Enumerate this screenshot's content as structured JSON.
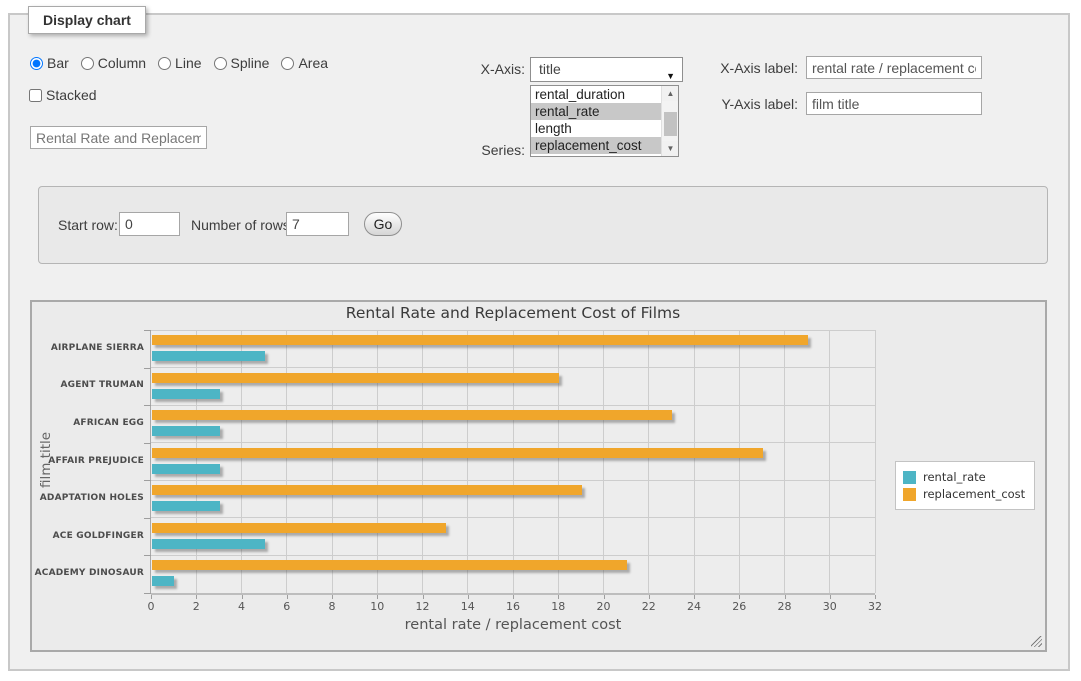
{
  "window": {
    "legend": "Display chart"
  },
  "icons": {
    "dropdown_arrow": "▼",
    "scroll_up": "▲",
    "scroll_down": "▼"
  },
  "controls": {
    "chart_types": [
      {
        "label": "Bar",
        "checked": true
      },
      {
        "label": "Column",
        "checked": false
      },
      {
        "label": "Line",
        "checked": false
      },
      {
        "label": "Spline",
        "checked": false
      },
      {
        "label": "Area",
        "checked": false
      }
    ],
    "stacked": {
      "label": "Stacked",
      "checked": false
    },
    "title_input": {
      "value": "Rental Rate and Replacemer"
    },
    "x_axis": {
      "label": "X-Axis:",
      "selected": "title"
    },
    "series": {
      "label": "Series:",
      "options": [
        {
          "label": "rental_duration",
          "selected": false
        },
        {
          "label": "rental_rate",
          "selected": true
        },
        {
          "label": "length",
          "selected": false
        },
        {
          "label": "replacement_cost",
          "selected": true
        }
      ]
    },
    "x_axis_label": {
      "label": "X-Axis label:",
      "value": "rental rate / replacement cost"
    },
    "y_axis_label": {
      "label": "Y-Axis label:",
      "value": "film title"
    }
  },
  "pagination": {
    "start_row_label": "Start row:",
    "start_row_value": "0",
    "num_rows_label": "Number of rows:",
    "num_rows_value": "7",
    "go_label": "Go"
  },
  "chart_data": {
    "type": "bar",
    "orientation": "horizontal",
    "title": "Rental Rate and Replacement Cost of Films",
    "categories": [
      "AIRPLANE SIERRA",
      "AGENT TRUMAN",
      "AFRICAN EGG",
      "AFFAIR PREJUDICE",
      "ADAPTATION HOLES",
      "ACE GOLDFINGER",
      "ACADEMY DINOSAUR"
    ],
    "series": [
      {
        "name": "rental_rate",
        "color": "#4db5c5",
        "values": [
          4.99,
          2.99,
          2.99,
          2.99,
          2.99,
          4.99,
          0.99
        ]
      },
      {
        "name": "replacement_cost",
        "color": "#f0a62b",
        "values": [
          28.99,
          17.99,
          22.99,
          26.99,
          18.99,
          12.99,
          20.99
        ]
      }
    ],
    "xlabel": "rental rate / replacement cost",
    "ylabel": "film title",
    "xlim": [
      0,
      32
    ],
    "xticks": [
      0,
      2,
      4,
      6,
      8,
      10,
      12,
      14,
      16,
      18,
      20,
      22,
      24,
      26,
      28,
      30,
      32
    ],
    "grid": true,
    "legend_position": "right"
  }
}
